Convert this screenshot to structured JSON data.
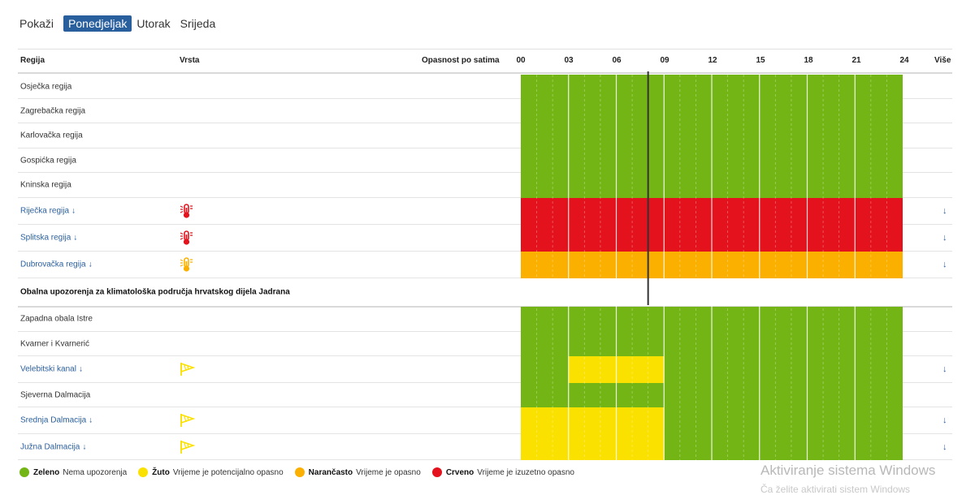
{
  "nav": {
    "show_label": "Pokaži",
    "days": [
      {
        "label": "Ponedjeljak",
        "active": true
      },
      {
        "label": "Utorak",
        "active": false
      },
      {
        "label": "Srijeda",
        "active": false
      }
    ]
  },
  "header": {
    "region": "Regija",
    "type": "Vrsta",
    "hourly": "Opasnost po satima",
    "hours": [
      "00",
      "03",
      "06",
      "09",
      "12",
      "15",
      "18",
      "21",
      "24"
    ],
    "more": "Više"
  },
  "colors": {
    "green": "#74b516",
    "yellow": "#fae100",
    "orange": "#fbb000",
    "red": "#e3121c",
    "link": "#2a5f9e",
    "nav_active": "#2a5f9e"
  },
  "rows": [
    {
      "name": "Osječka regija",
      "link": false,
      "icon": "",
      "segments": [
        "green",
        "green",
        "green",
        "green",
        "green",
        "green",
        "green",
        "green"
      ]
    },
    {
      "name": "Zagrebačka regija",
      "link": false,
      "icon": "",
      "segments": [
        "green",
        "green",
        "green",
        "green",
        "green",
        "green",
        "green",
        "green"
      ]
    },
    {
      "name": "Karlovačka regija",
      "link": false,
      "icon": "",
      "segments": [
        "green",
        "green",
        "green",
        "green",
        "green",
        "green",
        "green",
        "green"
      ]
    },
    {
      "name": "Gospićka regija",
      "link": false,
      "icon": "",
      "segments": [
        "green",
        "green",
        "green",
        "green",
        "green",
        "green",
        "green",
        "green"
      ]
    },
    {
      "name": "Kninska regija",
      "link": false,
      "icon": "",
      "segments": [
        "green",
        "green",
        "green",
        "green",
        "green",
        "green",
        "green",
        "green"
      ]
    },
    {
      "name": "Riječka regija",
      "link": true,
      "icon": "heat-thermometer-icon",
      "icon_color": "red",
      "segments": [
        "red",
        "red",
        "red",
        "red",
        "red",
        "red",
        "red",
        "red"
      ]
    },
    {
      "name": "Splitska regija",
      "link": true,
      "icon": "heat-thermometer-icon",
      "icon_color": "red",
      "segments": [
        "red",
        "red",
        "red",
        "red",
        "red",
        "red",
        "red",
        "red"
      ]
    },
    {
      "name": "Dubrovačka regija",
      "link": true,
      "icon": "heat-thermometer-icon",
      "icon_color": "orange",
      "segments": [
        "orange",
        "orange",
        "orange",
        "orange",
        "orange",
        "orange",
        "orange",
        "orange"
      ]
    },
    {
      "section": true,
      "name": "Obalna upozorenja za klimatološka područja hrvatskog dijela Jadrana"
    },
    {
      "name": "Zapadna obala Istre",
      "link": false,
      "icon": "",
      "segments": [
        "green",
        "green",
        "green",
        "green",
        "green",
        "green",
        "green",
        "green"
      ]
    },
    {
      "name": "Kvarner i Kvarnerić",
      "link": false,
      "icon": "",
      "segments": [
        "green",
        "green",
        "green",
        "green",
        "green",
        "green",
        "green",
        "green"
      ]
    },
    {
      "name": "Velebitski kanal",
      "link": true,
      "icon": "wind-flag-icon",
      "icon_color": "yellow",
      "segments": [
        "green",
        "yellow",
        "yellow",
        "green",
        "green",
        "green",
        "green",
        "green"
      ]
    },
    {
      "name": "Sjeverna Dalmacija",
      "link": false,
      "icon": "",
      "segments": [
        "green",
        "green",
        "green",
        "green",
        "green",
        "green",
        "green",
        "green"
      ]
    },
    {
      "name": "Srednja Dalmacija",
      "link": true,
      "icon": "wind-flag-icon",
      "icon_color": "yellow",
      "segments": [
        "yellow",
        "yellow",
        "yellow",
        "green",
        "green",
        "green",
        "green",
        "green"
      ]
    },
    {
      "name": "Južna Dalmacija",
      "link": true,
      "icon": "wind-flag-icon",
      "icon_color": "yellow",
      "segments": [
        "yellow",
        "yellow",
        "yellow",
        "green",
        "green",
        "green",
        "green",
        "green"
      ]
    }
  ],
  "current_time_marker": "08",
  "more_arrow": "↓",
  "legend": [
    {
      "color": "green",
      "label": "Zeleno",
      "desc": "Nema upozorenja"
    },
    {
      "color": "yellow",
      "label": "Žuto",
      "desc": "Vrijeme je potencijalno opasno"
    },
    {
      "color": "orange",
      "label": "Narančasto",
      "desc": "Vrijeme je opasno"
    },
    {
      "color": "red",
      "label": "Crveno",
      "desc": "Vrijeme je izuzetno opasno"
    }
  ],
  "watermark": {
    "line1": "Aktiviranje sistema Windows",
    "line2": "Ča želite aktivirati sistem Windows"
  }
}
